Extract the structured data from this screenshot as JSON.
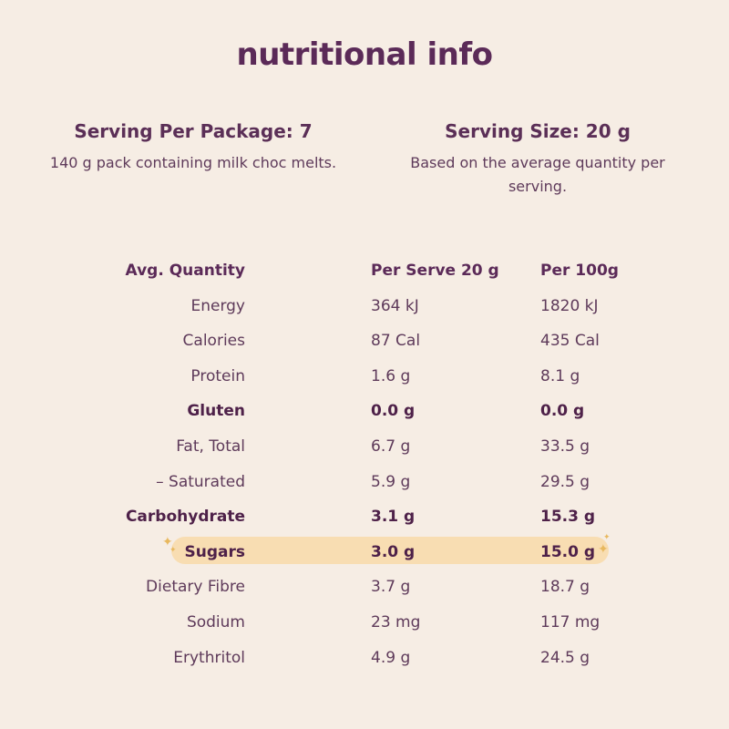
{
  "title": "nutritional info",
  "servings_per_package": {
    "heading": "Serving Per Package: 7",
    "description": "140 g pack containing milk choc melts."
  },
  "serving_size": {
    "heading": "Serving Size: 20 g",
    "description": "Based on the average quantity per serving."
  },
  "table": {
    "headers": [
      "Avg. Quantity",
      "Per Serve 20 g",
      "Per 100g"
    ],
    "rows": [
      [
        "Energy",
        "364 kJ",
        "1820 kJ"
      ],
      [
        "Calories",
        "87 Cal",
        "435 Cal"
      ],
      [
        "Protein",
        "1.6 g",
        "8.1 g"
      ],
      [
        "Gluten",
        "0.0 g",
        "0.0 g"
      ],
      [
        "Fat, Total",
        "6.7 g",
        "33.5 g"
      ],
      [
        "– Saturated",
        "5.9 g",
        "29.5 g"
      ],
      [
        "Carbohydrate",
        "3.1 g",
        "15.3 g"
      ],
      [
        "Sugars",
        "3.0 g",
        "15.0 g"
      ],
      [
        "Dietary Fibre",
        "3.7 g",
        "18.7 g"
      ],
      [
        "Sodium",
        "23 mg",
        "117 mg"
      ],
      [
        "Erythritol",
        "4.9 g",
        "24.5 g"
      ]
    ]
  },
  "colors": {
    "background": "#f6ede4",
    "text": "#5a2d55",
    "highlight": "#f8ddb2",
    "sparkle": "#e8b85e"
  }
}
